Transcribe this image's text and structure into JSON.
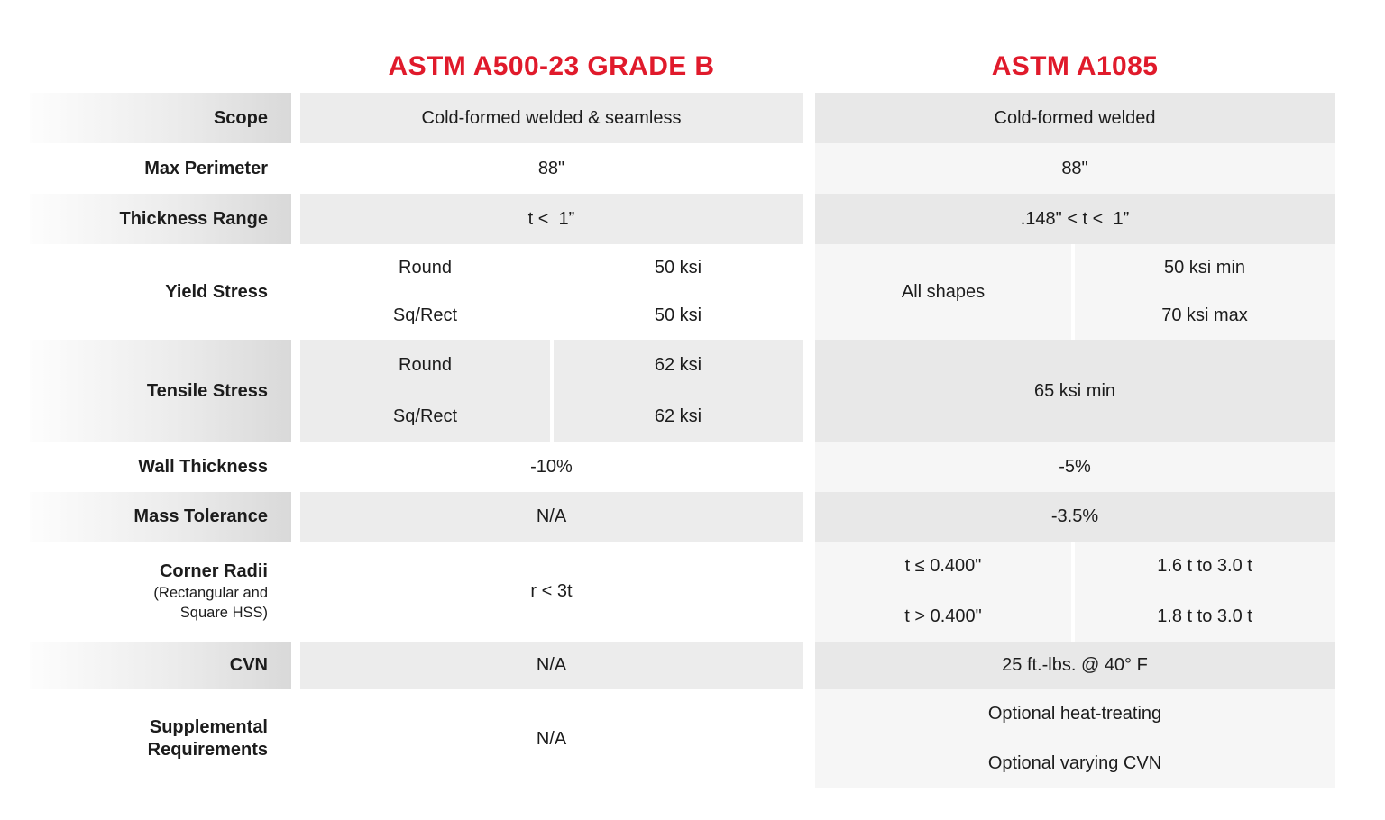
{
  "title_row": {
    "a500_header": "ASTM A500-23 GRADE B",
    "a1085_header": "ASTM A1085"
  },
  "colors": {
    "header_red": "#e01a2b",
    "row_gray_mid": "#ececec",
    "row_gray_right": "#e8e8e8",
    "row_light_right": "#f6f6f6",
    "label_gradient_end": "#d9d9d9",
    "text": "#1c1c1c"
  },
  "rows": {
    "scope": {
      "label": "Scope",
      "a500": "Cold-formed welded & seamless",
      "a1085": "Cold-formed welded"
    },
    "max_perimeter": {
      "label": "Max Perimeter",
      "a500": "88\"",
      "a1085": "88\""
    },
    "thickness_range": {
      "label": "Thickness Range",
      "a500": "t <  1”",
      "a1085": ".148\" < t <  1”"
    },
    "yield_stress": {
      "label": "Yield Stress",
      "a500_round_label": "Round",
      "a500_round_value": "50 ksi",
      "a500_sqrect_label": "Sq/Rect",
      "a500_sqrect_value": "50 ksi",
      "a1085_shapes": "All shapes",
      "a1085_min": "50 ksi min",
      "a1085_max": "70 ksi max"
    },
    "tensile_stress": {
      "label": "Tensile Stress",
      "a500_round_label": "Round",
      "a500_round_value": "62 ksi",
      "a500_sqrect_label": "Sq/Rect",
      "a500_sqrect_value": "62 ksi",
      "a1085": "65 ksi min"
    },
    "wall_thickness": {
      "label": "Wall Thickness",
      "a500": "-10%",
      "a1085": "-5%"
    },
    "mass_tolerance": {
      "label": "Mass Tolerance",
      "a500": "N/A",
      "a1085": "-3.5%"
    },
    "corner_radii": {
      "label": "Corner Radii",
      "sublabel_line1": "(Rectangular and",
      "sublabel_line2": "Square HSS)",
      "a500": "r < 3t",
      "a1085_cond1": "t ≤ 0.400\"",
      "a1085_val1": "1.6 t to 3.0 t",
      "a1085_cond2": "t > 0.400\"",
      "a1085_val2": "1.8 t to 3.0 t"
    },
    "cvn": {
      "label": "CVN",
      "a500": "N/A",
      "a1085": "25 ft.-lbs. @ 40° F"
    },
    "supplemental": {
      "label_line1": "Supplemental",
      "label_line2": "Requirements",
      "a500": "N/A",
      "a1085_line1": "Optional heat-treating",
      "a1085_line2": "Optional varying CVN"
    }
  }
}
